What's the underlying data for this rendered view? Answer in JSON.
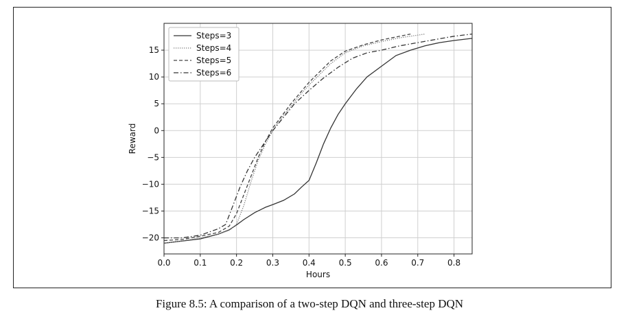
{
  "caption": "Figure 8.5: A comparison of a two-step DQN and three-step DQN",
  "chart_data": {
    "type": "line",
    "title": "",
    "xlabel": "Hours",
    "ylabel": "Reward",
    "xlim": [
      0.0,
      0.85
    ],
    "ylim": [
      -23,
      20
    ],
    "xticks": [
      0.0,
      0.1,
      0.2,
      0.3,
      0.4,
      0.5,
      0.6,
      0.7,
      0.8
    ],
    "xtick_labels": [
      "0.0",
      "0.1",
      "0.2",
      "0.3",
      "0.4",
      "0.5",
      "0.6",
      "0.7",
      "0.8"
    ],
    "yticks": [
      15,
      10,
      5,
      0,
      -5,
      -10,
      -15,
      -20
    ],
    "ytick_labels": [
      "15",
      "10",
      "5",
      "0",
      "−5",
      "−10",
      "−15",
      "−20"
    ],
    "grid": true,
    "legend": "top-left",
    "series": [
      {
        "name": "Steps=3",
        "dash": "solid",
        "x": [
          0.0,
          0.05,
          0.1,
          0.15,
          0.18,
          0.2,
          0.22,
          0.25,
          0.28,
          0.3,
          0.33,
          0.36,
          0.38,
          0.4,
          0.42,
          0.44,
          0.46,
          0.48,
          0.5,
          0.53,
          0.56,
          0.6,
          0.64,
          0.68,
          0.72,
          0.76,
          0.8,
          0.85
        ],
        "y": [
          -21.0,
          -20.6,
          -20.2,
          -19.3,
          -18.5,
          -17.6,
          -16.6,
          -15.3,
          -14.3,
          -13.8,
          -13.0,
          -11.8,
          -10.5,
          -9.3,
          -6.0,
          -2.5,
          0.5,
          3.0,
          5.0,
          7.7,
          10.0,
          12.0,
          14.0,
          15.0,
          15.8,
          16.4,
          16.8,
          17.2
        ]
      },
      {
        "name": "Steps=4",
        "dash": "dotted",
        "x": [
          0.0,
          0.05,
          0.1,
          0.15,
          0.18,
          0.2,
          0.22,
          0.24,
          0.26,
          0.28,
          0.3,
          0.32,
          0.35,
          0.38,
          0.4,
          0.43,
          0.46,
          0.5,
          0.55,
          0.6,
          0.65,
          0.7,
          0.72
        ],
        "y": [
          -21.0,
          -20.6,
          -20.0,
          -19.3,
          -18.6,
          -17.5,
          -14.0,
          -9.5,
          -5.5,
          -2.5,
          0.0,
          2.0,
          4.5,
          7.0,
          8.5,
          10.5,
          12.5,
          14.5,
          15.8,
          16.6,
          17.3,
          17.8,
          18.0
        ]
      },
      {
        "name": "Steps=5",
        "dash": "dashed",
        "x": [
          0.0,
          0.05,
          0.1,
          0.15,
          0.18,
          0.2,
          0.22,
          0.24,
          0.26,
          0.28,
          0.3,
          0.32,
          0.35,
          0.38,
          0.4,
          0.43,
          0.46,
          0.5,
          0.55,
          0.6,
          0.65,
          0.68
        ],
        "y": [
          -20.5,
          -20.3,
          -19.7,
          -19.0,
          -17.8,
          -15.5,
          -12.0,
          -8.5,
          -5.0,
          -2.0,
          0.5,
          2.3,
          5.0,
          7.4,
          9.0,
          11.0,
          13.0,
          14.8,
          16.0,
          16.9,
          17.6,
          18.0
        ]
      },
      {
        "name": "Steps=6",
        "dash": "dashdot",
        "x": [
          0.0,
          0.05,
          0.1,
          0.15,
          0.17,
          0.19,
          0.21,
          0.23,
          0.25,
          0.27,
          0.3,
          0.33,
          0.36,
          0.4,
          0.44,
          0.48,
          0.52,
          0.56,
          0.6,
          0.65,
          0.7,
          0.75,
          0.8,
          0.85
        ],
        "y": [
          -20.0,
          -20.0,
          -19.5,
          -18.3,
          -17.5,
          -14.0,
          -10.5,
          -7.5,
          -5.0,
          -3.0,
          0.0,
          2.5,
          5.0,
          7.5,
          9.8,
          11.8,
          13.5,
          14.5,
          15.0,
          15.8,
          16.4,
          17.0,
          17.6,
          18.0
        ]
      }
    ]
  }
}
